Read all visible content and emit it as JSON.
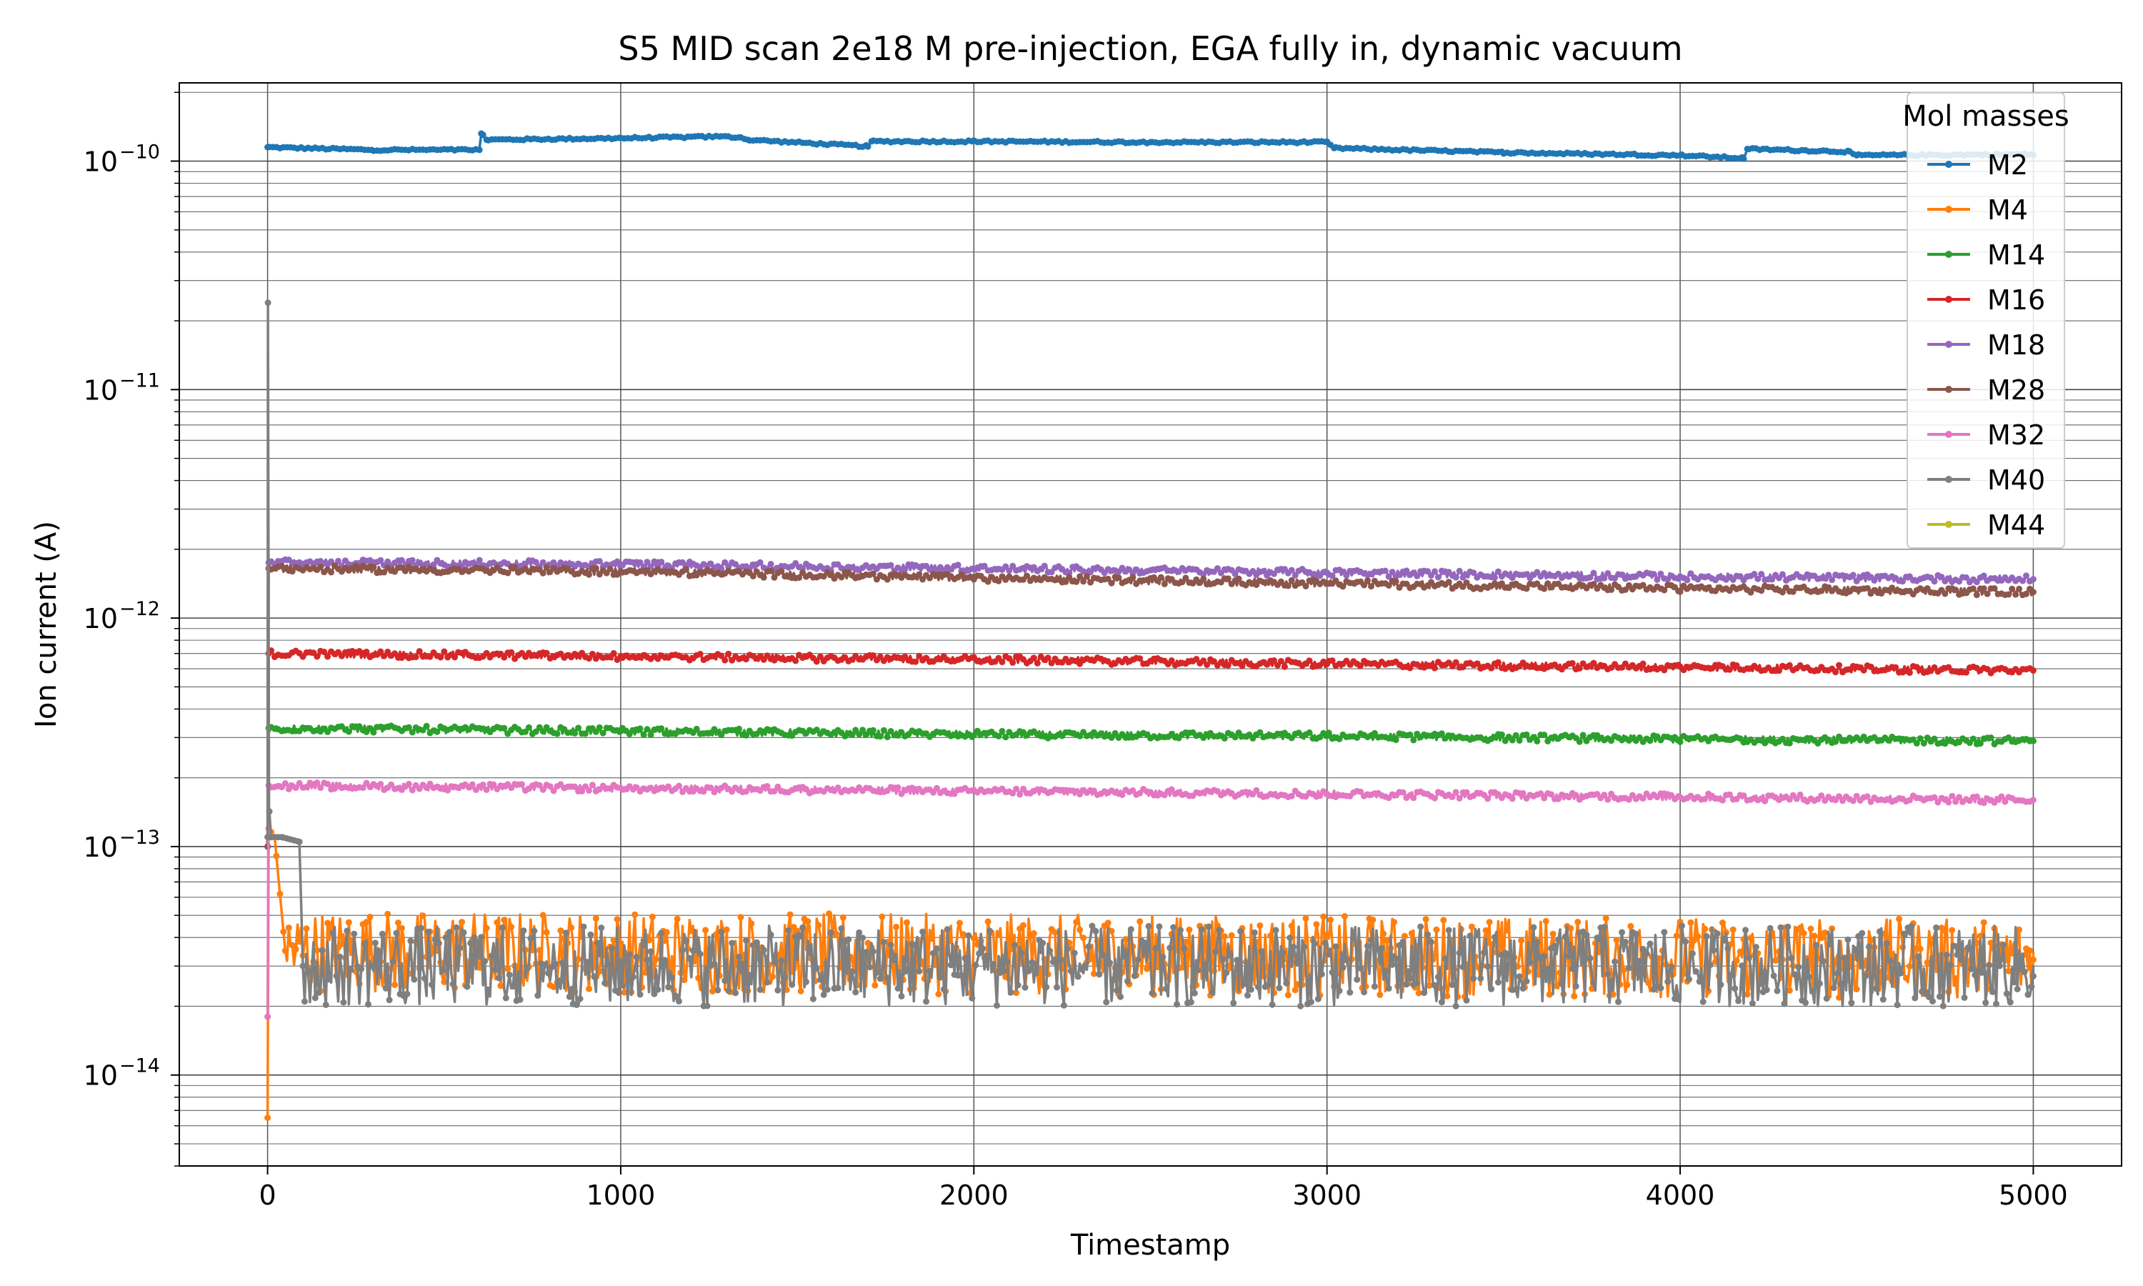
{
  "chart_data": {
    "type": "line",
    "title": "S5 MID scan 2e18 M pre-injection, EGA fully in, dynamic vacuum",
    "xlabel": "Timestamp",
    "ylabel": "Ion current (A)",
    "xlim": [
      -250,
      5250
    ],
    "ylim": [
      4e-15,
      2.2e-10
    ],
    "y_scale": "log",
    "grid": "major and minor",
    "x_ticks": [
      0,
      1000,
      2000,
      3000,
      4000,
      5000
    ],
    "x_tick_labels": [
      "0",
      "1000",
      "2000",
      "3000",
      "4000",
      "5000"
    ],
    "y_ticks": [
      1e-14,
      1e-13,
      1e-12,
      1e-11,
      1e-10
    ],
    "y_tick_labels": [
      "10",
      "10",
      "10",
      "10",
      "10"
    ],
    "y_tick_exponents": [
      "−14",
      "−13",
      "−12",
      "−11",
      "−10"
    ],
    "legend": {
      "title": "Mol masses",
      "location": "top-right"
    },
    "series": [
      {
        "name": "M2",
        "color": "#1f77b4",
        "x": [
          0,
          300,
          600,
          605,
          620,
          1000,
          1280,
          1340,
          1360,
          1700,
          1710,
          2000,
          2500,
          3000,
          3020,
          3500,
          4000,
          4180,
          4190,
          4480,
          4500,
          5000
        ],
        "y": [
          1.15e-10,
          1.12e-10,
          1.12e-10,
          1.32e-10,
          1.24e-10,
          1.26e-10,
          1.28e-10,
          1.27e-10,
          1.24e-10,
          1.16e-10,
          1.22e-10,
          1.22e-10,
          1.21e-10,
          1.21e-10,
          1.14e-10,
          1.09e-10,
          1.06e-10,
          1.03e-10,
          1.13e-10,
          1.1e-10,
          1.06e-10,
          1.07e-10
        ]
      },
      {
        "name": "M4",
        "color": "#ff7f0e",
        "x": [
          0,
          3,
          20,
          50,
          5000
        ],
        "y": [
          6.5e-15,
          1.2e-13,
          1.1e-13,
          3.5e-14,
          3.2e-14
        ],
        "noise": "±50%"
      },
      {
        "name": "M14",
        "color": "#2ca02c",
        "x": [
          0,
          3,
          1000,
          2000,
          3000,
          4000,
          5000
        ],
        "y": [
          1e-13,
          3.3e-13,
          3.2e-13,
          3.1e-13,
          3.05e-13,
          2.95e-13,
          2.9e-13
        ]
      },
      {
        "name": "M16",
        "color": "#d62728",
        "x": [
          0,
          3,
          1000,
          2000,
          3000,
          4000,
          5000
        ],
        "y": [
          1e-13,
          7e-13,
          6.8e-13,
          6.6e-13,
          6.3e-13,
          6.1e-13,
          5.9e-13
        ]
      },
      {
        "name": "M18",
        "color": "#9467bd",
        "x": [
          0,
          3,
          1000,
          2000,
          3000,
          4000,
          5000
        ],
        "y": [
          1e-13,
          1.75e-12,
          1.72e-12,
          1.65e-12,
          1.58e-12,
          1.52e-12,
          1.48e-12
        ]
      },
      {
        "name": "M28",
        "color": "#8c564b",
        "x": [
          0,
          3,
          1000,
          2000,
          3000,
          4000,
          5000
        ],
        "y": [
          1e-13,
          1.65e-12,
          1.6e-12,
          1.5e-12,
          1.42e-12,
          1.35e-12,
          1.3e-12
        ]
      },
      {
        "name": "M32",
        "color": "#e377c2",
        "x": [
          0,
          3,
          1000,
          2000,
          3000,
          4000,
          5000
        ],
        "y": [
          1.8e-14,
          1.85e-13,
          1.8e-13,
          1.75e-13,
          1.7e-13,
          1.65e-13,
          1.6e-13
        ]
      },
      {
        "name": "M40",
        "color": "#7f7f7f",
        "x": [
          0,
          1,
          4,
          10,
          40,
          90,
          100,
          5000
        ],
        "y": [
          1.1e-13,
          2.4e-11,
          1.5e-13,
          1.1e-13,
          1.1e-13,
          1.05e-13,
          3e-14,
          3e-14
        ],
        "noise": "±50%"
      },
      {
        "name": "M44",
        "color": "#bcbd22",
        "x": [],
        "y": []
      }
    ]
  }
}
